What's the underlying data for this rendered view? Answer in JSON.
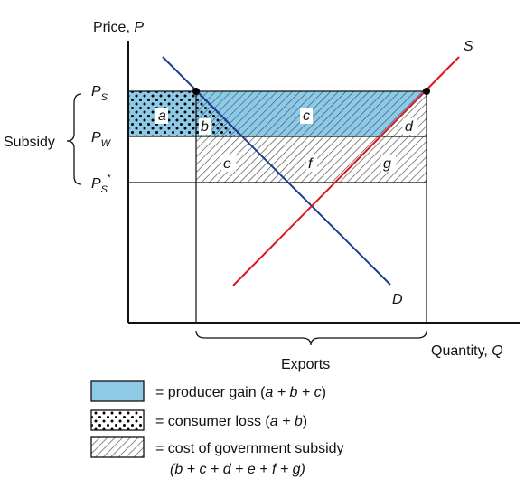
{
  "diagram": {
    "axes": {
      "y_label_text": "Price, ",
      "y_label_var": "P",
      "x_label_text": "Quantity, ",
      "x_label_var": "Q"
    },
    "price_levels": [
      {
        "main": "P",
        "sub": "S",
        "sup": ""
      },
      {
        "main": "P",
        "sub": "W",
        "sup": ""
      },
      {
        "main": "P",
        "sub": "S",
        "sup": "*"
      }
    ],
    "subsidy_label": "Subsidy",
    "curves": {
      "supply": "S",
      "demand": "D",
      "supply_color": "#e0141e",
      "demand_color": "#1f3a8f"
    },
    "regions": [
      "a",
      "b",
      "c",
      "d",
      "e",
      "f",
      "g"
    ],
    "exports_label": "Exports",
    "colors": {
      "producer_fill": "#8ecae6",
      "axis": "#111111"
    },
    "legend": [
      {
        "pattern": "blue",
        "text": "= producer gain (",
        "formula": "a + b + c",
        "close": ")"
      },
      {
        "pattern": "dots",
        "text": "= consumer loss (",
        "formula": "a + b",
        "close": ")"
      },
      {
        "pattern": "hatch",
        "text": "= cost of government subsidy",
        "formula_line2": "(b + c + d + e + f + g)"
      }
    ]
  }
}
